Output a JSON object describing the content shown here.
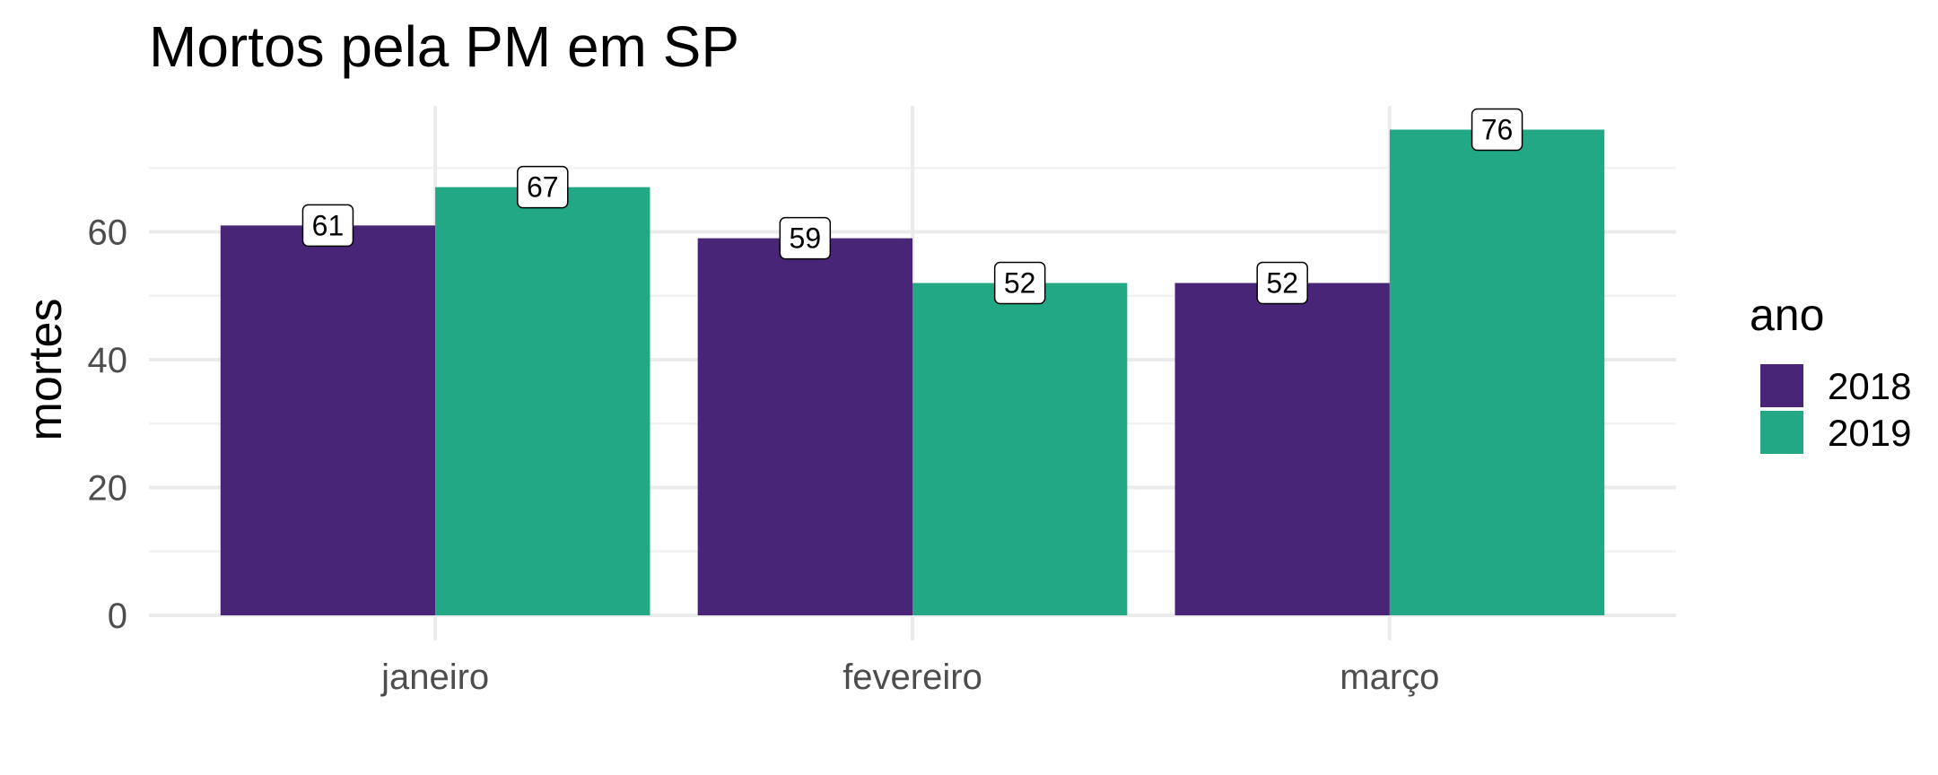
{
  "chart_data": {
    "type": "bar",
    "title": "Mortos pela PM em SP",
    "xlabel": "",
    "ylabel": "mortes",
    "categories": [
      "janeiro",
      "fevereiro",
      "março"
    ],
    "series": [
      {
        "name": "2018",
        "values": [
          61,
          59,
          52
        ]
      },
      {
        "name": "2019",
        "values": [
          67,
          52,
          76
        ]
      }
    ],
    "yticks": [
      0,
      20,
      40,
      60
    ],
    "ylim": [
      0,
      80
    ],
    "grid": true,
    "legend": {
      "title": "ano",
      "placement": "right"
    },
    "colors": {
      "2018": "#482576",
      "2019": "#22a884"
    }
  }
}
